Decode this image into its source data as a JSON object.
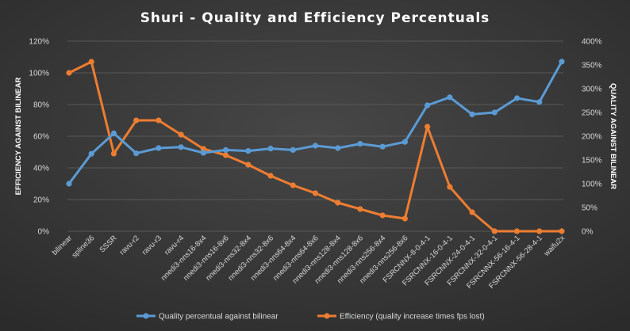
{
  "chart_data": {
    "type": "line",
    "title": "Shuri  -  Quality  and  Efficiency  Percentuals",
    "ylabel_left": "EFFICIENCY AGAINST BILINEAR",
    "ylabel_right": "QUALITY AGAINST BILINEAR",
    "left_axis": {
      "min": 0,
      "max": 120,
      "step": 20,
      "suffix": "%"
    },
    "right_axis": {
      "min": 0,
      "max": 400,
      "step": 50,
      "suffix": "%"
    },
    "categories": [
      "bilinear",
      "spline36",
      "SSSR",
      "ravu-r2",
      "ravu-r3",
      "ravu-r4",
      "nnedi3-nns16-8x4",
      "nnedi3-nns16-8x6",
      "nnedi3-nns32-8x4",
      "nnedi3-nns32-8x6",
      "nnedi3-nns64-8x4",
      "nnedi3-nns64-8x6",
      "nnedi3-nns128-8x4",
      "nnedi3-nns128-8x6",
      "nnedi3-nns256-8x4",
      "nnedi3-nns256-8x6",
      "FSRCNNX-8-0-4-1",
      "FSRCNNX-16-0-4-1",
      "FSRCNNX-24-0-4-1",
      "FSRCNNX-32-0-4-1",
      "FSRCNNX-56-16-4-1",
      "FSRCNNX-56-28-4-1",
      "waifu2x"
    ],
    "series": [
      {
        "name": "Quality percentual against bilinear",
        "axis": "right",
        "color": "#5b9bd5",
        "values": [
          100,
          163,
          206,
          164,
          175,
          177,
          165,
          171,
          169,
          174,
          171,
          180,
          175,
          184,
          178,
          188,
          265,
          282,
          246,
          250,
          280,
          272,
          357
        ]
      },
      {
        "name": "Efficiency (quality increase times fps lost)",
        "axis": "left",
        "color": "#ed7d31",
        "values": [
          100,
          107,
          49,
          70,
          70,
          61,
          52,
          48,
          42,
          35,
          29,
          24,
          18,
          14,
          10,
          8,
          66,
          28,
          12,
          0,
          0,
          0,
          0
        ]
      }
    ],
    "grid": "horizontal",
    "legend": "bottom"
  }
}
